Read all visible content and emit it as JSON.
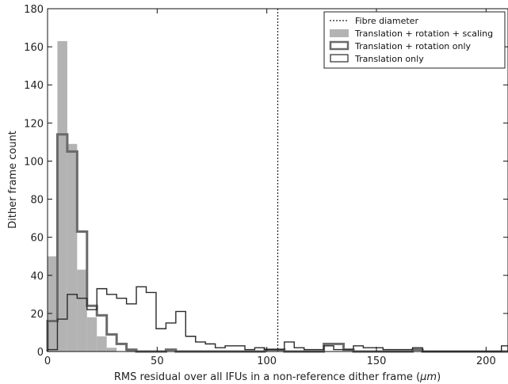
{
  "chart_data": {
    "type": "histogram",
    "xlabel": "RMS residual over all IFUs in a non-reference dither frame (",
    "xlabel_unit": "μm",
    "xlabel_close": ")",
    "ylabel": "Dither frame count",
    "xlim": [
      0,
      210
    ],
    "ylim": [
      0,
      180
    ],
    "xticks": [
      0,
      50,
      100,
      150,
      200
    ],
    "yticks": [
      0,
      20,
      40,
      60,
      80,
      100,
      120,
      140,
      160,
      180
    ],
    "grid": false,
    "legend_position": "top-right",
    "vline": {
      "name": "Fibre diameter",
      "x": 105,
      "style": "dotted",
      "color": "#222222"
    },
    "series": [
      {
        "name": "Translation + rotation + scaling",
        "style": "filled",
        "color": "#b3b3b3",
        "edges": [
          0,
          4.5,
          9,
          13.5,
          18,
          22.5,
          27,
          31.5,
          36,
          40.5,
          45,
          49.5,
          54,
          58.5,
          63,
          67.5,
          72,
          76.5,
          81,
          85.5,
          90,
          94.5,
          99,
          103.5,
          108,
          112.5,
          117,
          121.5,
          126,
          130.5,
          135,
          139.5,
          144,
          148.5,
          153,
          157.5,
          162,
          166.5,
          171,
          175.5,
          180,
          184.5,
          189,
          193.5,
          198,
          202.5,
          207,
          210
        ],
        "counts": [
          50,
          163,
          109,
          43,
          18,
          8,
          2,
          0,
          1,
          0,
          0,
          0,
          0,
          0,
          0,
          0,
          0,
          0,
          0,
          0,
          0,
          0,
          0,
          0,
          0,
          0,
          0,
          0,
          0,
          0,
          0,
          0,
          0,
          0,
          0,
          0,
          0,
          0,
          0,
          0,
          0,
          0,
          0,
          0,
          0,
          0,
          0
        ]
      },
      {
        "name": "Translation + rotation only",
        "style": "step",
        "color": "#6a6a6a",
        "edges": [
          0,
          4.5,
          9,
          13.5,
          18,
          22.5,
          27,
          31.5,
          36,
          40.5,
          45,
          49.5,
          54,
          58.5,
          63,
          67.5,
          72,
          76.5,
          81,
          85.5,
          90,
          94.5,
          99,
          103.5,
          108,
          112.5,
          117,
          121.5,
          126,
          130.5,
          135,
          139.5,
          144,
          148.5,
          153,
          157.5,
          162,
          166.5,
          171,
          175.5,
          180,
          184.5,
          189,
          193.5,
          198,
          202.5,
          207,
          210
        ],
        "counts": [
          16,
          114,
          105,
          63,
          24,
          19,
          9,
          4,
          1,
          0,
          0,
          0,
          1,
          0,
          0,
          0,
          0,
          0,
          0,
          0,
          0,
          0,
          1,
          1,
          0,
          0,
          0,
          0,
          4,
          4,
          1,
          0,
          0,
          0,
          0,
          0,
          0,
          1,
          0,
          0,
          0,
          0,
          0,
          0,
          0,
          0,
          0
        ]
      },
      {
        "name": "Translation only",
        "style": "step",
        "color": "#2a2a2a",
        "edges": [
          0,
          4.5,
          9,
          13.5,
          18,
          22.5,
          27,
          31.5,
          36,
          40.5,
          45,
          49.5,
          54,
          58.5,
          63,
          67.5,
          72,
          76.5,
          81,
          85.5,
          90,
          94.5,
          99,
          103.5,
          108,
          112.5,
          117,
          121.5,
          126,
          130.5,
          135,
          139.5,
          144,
          148.5,
          153,
          157.5,
          162,
          166.5,
          171,
          175.5,
          180,
          184.5,
          189,
          193.5,
          198,
          202.5,
          207,
          210
        ],
        "counts": [
          1,
          17,
          30,
          28,
          22,
          33,
          30,
          28,
          25,
          34,
          31,
          12,
          15,
          21,
          8,
          5,
          4,
          2,
          3,
          3,
          1,
          2,
          1,
          1,
          5,
          2,
          1,
          1,
          3,
          1,
          1,
          3,
          2,
          2,
          1,
          1,
          1,
          2,
          0,
          0,
          0,
          0,
          0,
          0,
          0,
          0,
          3
        ]
      }
    ]
  }
}
